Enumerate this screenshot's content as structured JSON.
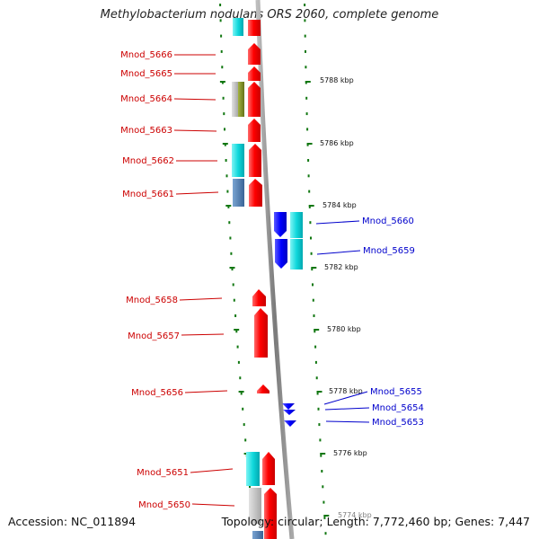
{
  "title": "Methylobacterium nodulans ORS 2060, complete genome",
  "footer": {
    "accession": "Accession: NC_011894",
    "summary": "Topology: circular; Length: 7,772,460 bp; Genes: 7,447"
  },
  "colors": {
    "forward_label": "#cc0000",
    "reverse_label": "#0000cc",
    "cds_red": "#ff0000",
    "cds_blue": "#0000ff",
    "cyan_feature": "#00d0d8",
    "grey_feature": "#b8b8b8",
    "olive_feature": "#7a8a22",
    "steelblue_feature": "#4a78aa",
    "backbone": "#888888",
    "tick": "#117711"
  },
  "scale_labels": [
    "5788 kbp",
    "5786 kbp",
    "5784 kbp",
    "5782 kbp",
    "5780 kbp",
    "5778 kbp",
    "5776 kbp",
    "5774 kbp"
  ],
  "forward_genes": [
    "Mnod_5666",
    "Mnod_5665",
    "Mnod_5664",
    "Mnod_5663",
    "Mnod_5662",
    "Mnod_5661",
    "Mnod_5658",
    "Mnod_5657",
    "Mnod_5656",
    "Mnod_5651",
    "Mnod_5650"
  ],
  "reverse_genes": [
    "Mnod_5660",
    "Mnod_5659",
    "Mnod_5655",
    "Mnod_5654",
    "Mnod_5653"
  ]
}
